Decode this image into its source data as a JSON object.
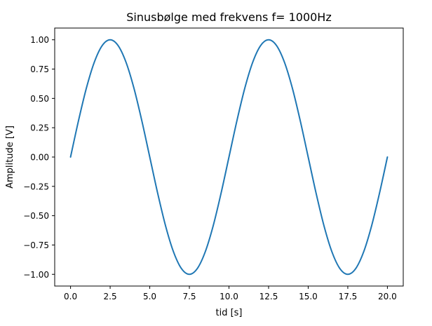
{
  "chart_data": {
    "type": "line",
    "title": "Sinusbølge med frekvens f= 1000Hz",
    "xlabel": "tid [s]",
    "ylabel": "Amplitude [V]",
    "xlim": [
      -1.0,
      21.0
    ],
    "ylim": [
      -1.1,
      1.1
    ],
    "grid": false,
    "xticks": [
      0.0,
      2.5,
      5.0,
      7.5,
      10.0,
      12.5,
      15.0,
      17.5,
      20.0
    ],
    "xtick_labels": [
      "0.0",
      "2.5",
      "5.0",
      "7.5",
      "10.0",
      "12.5",
      "15.0",
      "17.5",
      "20.0"
    ],
    "yticks": [
      1.0,
      0.75,
      0.5,
      0.25,
      0.0,
      -0.25,
      -0.5,
      -0.75,
      -1.0
    ],
    "ytick_labels": [
      "1.00",
      "0.75",
      "0.50",
      "0.25",
      "0.00",
      "−0.25",
      "−0.50",
      "−0.75",
      "−1.00"
    ],
    "series": [
      {
        "color": "#1f77b4",
        "x": [
          0,
          0.5,
          1,
          1.5,
          2,
          2.5,
          3,
          3.5,
          4,
          4.5,
          5,
          5.5,
          6,
          6.5,
          7,
          7.5,
          8,
          8.5,
          9,
          9.5,
          10,
          10.5,
          11,
          11.5,
          12,
          12.5,
          13,
          13.5,
          14,
          14.5,
          15,
          15.5,
          16,
          16.5,
          17,
          17.5,
          18,
          18.5,
          19,
          19.5,
          20
        ],
        "y": [
          0.0,
          0.309,
          0.588,
          0.809,
          0.951,
          1.0,
          0.951,
          0.809,
          0.588,
          0.309,
          0.0,
          -0.309,
          -0.588,
          -0.809,
          -0.951,
          -1.0,
          -0.951,
          -0.809,
          -0.588,
          -0.309,
          0.0,
          0.309,
          0.588,
          0.809,
          0.951,
          1.0,
          0.951,
          0.809,
          0.588,
          0.309,
          0.0,
          -0.309,
          -0.588,
          -0.809,
          -0.951,
          -1.0,
          -0.951,
          -0.809,
          -0.588,
          -0.309,
          0.0
        ]
      }
    ]
  }
}
